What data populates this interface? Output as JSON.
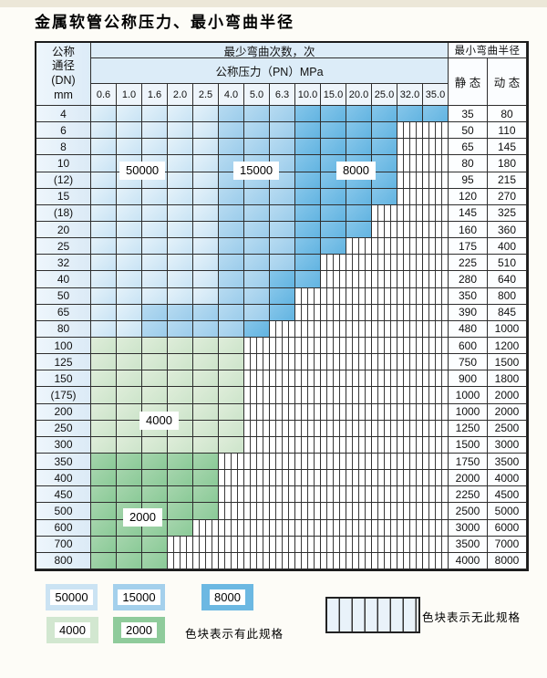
{
  "title": "金属软管公称压力、最小弯曲半径",
  "colors": {
    "cycles_50000": "#cbe3f3",
    "cycles_15000": "#a4d0ec",
    "cycles_8000": "#6cb8e2",
    "cycles_4000": "#d2e7d0",
    "cycles_2000": "#8fcb9b",
    "header_band": "#dcecf8",
    "no_spec_stripe_bg": "#ffffff"
  },
  "table": {
    "header": {
      "dn_lines": [
        "公称",
        "通径",
        "(DN)",
        "mm"
      ],
      "bend_cycles": "最少弯曲次数，次",
      "pressure": "公称压力（PN）MPa",
      "radius": "最小弯曲半径",
      "static": "静 态",
      "dynamic": "动 态",
      "pressures": [
        "0.6",
        "1.0",
        "1.6",
        "2.0",
        "2.5",
        "4.0",
        "5.0",
        "6.3",
        "10.0",
        "15.0",
        "20.0",
        "25.0",
        "32.0",
        "35.0"
      ]
    },
    "zone_legend_meaning": {
      "L": "50000",
      "M": "15000",
      "D": "8000",
      "G4": "4000",
      "G2": "2000",
      "S": "no-spec"
    },
    "rows": [
      {
        "dn": "4",
        "static": "35",
        "dynamic": "80",
        "zones": [
          "L",
          "L",
          "L",
          "L",
          "L",
          "M",
          "M",
          "M",
          "D",
          "D",
          "D",
          "D",
          "D",
          "D"
        ]
      },
      {
        "dn": "6",
        "static": "50",
        "dynamic": "110",
        "zones": [
          "L",
          "L",
          "L",
          "L",
          "L",
          "M",
          "M",
          "M",
          "D",
          "D",
          "D",
          "D",
          "S",
          "S"
        ]
      },
      {
        "dn": "8",
        "static": "65",
        "dynamic": "145",
        "zones": [
          "L",
          "L",
          "L",
          "L",
          "L",
          "M",
          "M",
          "M",
          "D",
          "D",
          "D",
          "D",
          "S",
          "S"
        ]
      },
      {
        "dn": "10",
        "static": "80",
        "dynamic": "180",
        "zones": [
          "L",
          "L",
          "L",
          "L",
          "L",
          "M",
          "M",
          "M",
          "D",
          "D",
          "D",
          "D",
          "S",
          "S"
        ]
      },
      {
        "dn": "(12)",
        "static": "95",
        "dynamic": "215",
        "zones": [
          "L",
          "L",
          "L",
          "L",
          "L",
          "M",
          "M",
          "M",
          "D",
          "D",
          "D",
          "D",
          "S",
          "S"
        ]
      },
      {
        "dn": "15",
        "static": "120",
        "dynamic": "270",
        "zones": [
          "L",
          "L",
          "L",
          "L",
          "L",
          "M",
          "M",
          "M",
          "D",
          "D",
          "D",
          "D",
          "S",
          "S"
        ]
      },
      {
        "dn": "(18)",
        "static": "145",
        "dynamic": "325",
        "zones": [
          "L",
          "L",
          "L",
          "L",
          "L",
          "M",
          "M",
          "M",
          "D",
          "D",
          "D",
          "S",
          "S",
          "S"
        ]
      },
      {
        "dn": "20",
        "static": "160",
        "dynamic": "360",
        "zones": [
          "L",
          "L",
          "L",
          "L",
          "L",
          "M",
          "M",
          "M",
          "D",
          "D",
          "D",
          "S",
          "S",
          "S"
        ]
      },
      {
        "dn": "25",
        "static": "175",
        "dynamic": "400",
        "zones": [
          "L",
          "L",
          "L",
          "L",
          "L",
          "M",
          "M",
          "M",
          "D",
          "D",
          "S",
          "S",
          "S",
          "S"
        ]
      },
      {
        "dn": "32",
        "static": "225",
        "dynamic": "510",
        "zones": [
          "L",
          "L",
          "L",
          "L",
          "L",
          "M",
          "M",
          "M",
          "D",
          "S",
          "S",
          "S",
          "S",
          "S"
        ]
      },
      {
        "dn": "40",
        "static": "280",
        "dynamic": "640",
        "zones": [
          "L",
          "L",
          "L",
          "L",
          "L",
          "M",
          "M",
          "D",
          "D",
          "S",
          "S",
          "S",
          "S",
          "S"
        ]
      },
      {
        "dn": "50",
        "static": "350",
        "dynamic": "800",
        "zones": [
          "L",
          "L",
          "L",
          "L",
          "L",
          "M",
          "M",
          "D",
          "S",
          "S",
          "S",
          "S",
          "S",
          "S"
        ]
      },
      {
        "dn": "65",
        "static": "390",
        "dynamic": "845",
        "zones": [
          "L",
          "L",
          "M",
          "M",
          "M",
          "M",
          "M",
          "D",
          "S",
          "S",
          "S",
          "S",
          "S",
          "S"
        ]
      },
      {
        "dn": "80",
        "static": "480",
        "dynamic": "1000",
        "zones": [
          "L",
          "L",
          "M",
          "M",
          "M",
          "M",
          "D",
          "S",
          "S",
          "S",
          "S",
          "S",
          "S",
          "S"
        ]
      },
      {
        "dn": "100",
        "static": "600",
        "dynamic": "1200",
        "zones": [
          "G4",
          "G4",
          "G4",
          "G4",
          "G4",
          "G4",
          "S",
          "S",
          "S",
          "S",
          "S",
          "S",
          "S",
          "S"
        ]
      },
      {
        "dn": "125",
        "static": "750",
        "dynamic": "1500",
        "zones": [
          "G4",
          "G4",
          "G4",
          "G4",
          "G4",
          "G4",
          "S",
          "S",
          "S",
          "S",
          "S",
          "S",
          "S",
          "S"
        ]
      },
      {
        "dn": "150",
        "static": "900",
        "dynamic": "1800",
        "zones": [
          "G4",
          "G4",
          "G4",
          "G4",
          "G4",
          "G4",
          "S",
          "S",
          "S",
          "S",
          "S",
          "S",
          "S",
          "S"
        ]
      },
      {
        "dn": "(175)",
        "static": "1000",
        "dynamic": "2000",
        "zones": [
          "G4",
          "G4",
          "G4",
          "G4",
          "G4",
          "G4",
          "S",
          "S",
          "S",
          "S",
          "S",
          "S",
          "S",
          "S"
        ]
      },
      {
        "dn": "200",
        "static": "1000",
        "dynamic": "2000",
        "zones": [
          "G4",
          "G4",
          "G4",
          "G4",
          "G4",
          "G4",
          "S",
          "S",
          "S",
          "S",
          "S",
          "S",
          "S",
          "S"
        ]
      },
      {
        "dn": "250",
        "static": "1250",
        "dynamic": "2500",
        "zones": [
          "G4",
          "G4",
          "G4",
          "G4",
          "G4",
          "G4",
          "S",
          "S",
          "S",
          "S",
          "S",
          "S",
          "S",
          "S"
        ]
      },
      {
        "dn": "300",
        "static": "1500",
        "dynamic": "3000",
        "zones": [
          "G4",
          "G4",
          "G4",
          "G4",
          "G4",
          "G4",
          "S",
          "S",
          "S",
          "S",
          "S",
          "S",
          "S",
          "S"
        ]
      },
      {
        "dn": "350",
        "static": "1750",
        "dynamic": "3500",
        "zones": [
          "G2",
          "G2",
          "G2",
          "G2",
          "G2",
          "S",
          "S",
          "S",
          "S",
          "S",
          "S",
          "S",
          "S",
          "S"
        ]
      },
      {
        "dn": "400",
        "static": "2000",
        "dynamic": "4000",
        "zones": [
          "G2",
          "G2",
          "G2",
          "G2",
          "G2",
          "S",
          "S",
          "S",
          "S",
          "S",
          "S",
          "S",
          "S",
          "S"
        ]
      },
      {
        "dn": "450",
        "static": "2250",
        "dynamic": "4500",
        "zones": [
          "G2",
          "G2",
          "G2",
          "G2",
          "G2",
          "S",
          "S",
          "S",
          "S",
          "S",
          "S",
          "S",
          "S",
          "S"
        ]
      },
      {
        "dn": "500",
        "static": "2500",
        "dynamic": "5000",
        "zones": [
          "G2",
          "G2",
          "G2",
          "G2",
          "G2",
          "S",
          "S",
          "S",
          "S",
          "S",
          "S",
          "S",
          "S",
          "S"
        ]
      },
      {
        "dn": "600",
        "static": "3000",
        "dynamic": "6000",
        "zones": [
          "G2",
          "G2",
          "G2",
          "G2",
          "S",
          "S",
          "S",
          "S",
          "S",
          "S",
          "S",
          "S",
          "S",
          "S"
        ]
      },
      {
        "dn": "700",
        "static": "3500",
        "dynamic": "7000",
        "zones": [
          "G2",
          "G2",
          "G2",
          "S",
          "S",
          "S",
          "S",
          "S",
          "S",
          "S",
          "S",
          "S",
          "S",
          "S"
        ]
      },
      {
        "dn": "800",
        "static": "4000",
        "dynamic": "8000",
        "zones": [
          "G2",
          "G2",
          "G2",
          "S",
          "S",
          "S",
          "S",
          "S",
          "S",
          "S",
          "S",
          "S",
          "S",
          "S"
        ]
      }
    ]
  },
  "overlays": [
    {
      "label": "50000"
    },
    {
      "label": "15000"
    },
    {
      "label": "8000"
    },
    {
      "label": "4000"
    },
    {
      "label": "2000"
    }
  ],
  "legend": {
    "chips": [
      {
        "label": "50000",
        "color": "#cbe3f3"
      },
      {
        "label": "15000",
        "color": "#a4d0ec"
      },
      {
        "label": "8000",
        "color": "#6cb8e2"
      },
      {
        "label": "4000",
        "color": "#d2e7d0"
      },
      {
        "label": "2000",
        "color": "#8fcb9b"
      }
    ],
    "has_spec": "色块表示有此规格",
    "no_spec": "色块表示无此规格"
  }
}
